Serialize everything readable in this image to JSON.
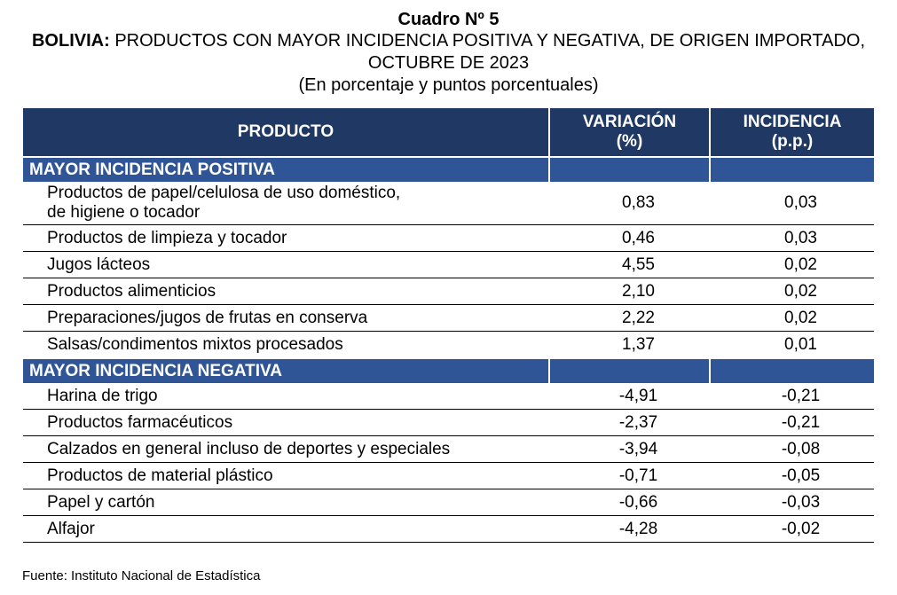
{
  "header": {
    "cuadro": "Cuadro Nº 5",
    "country": "BOLIVIA:",
    "title_rest": " PRODUCTOS CON MAYOR INCIDENCIA POSITIVA Y NEGATIVA, DE ORIGEN IMPORTADO, OCTUBRE DE 2023",
    "subtitle": "(En porcentaje y puntos porcentuales)"
  },
  "table": {
    "columns": {
      "product": "PRODUCTO",
      "variation": "VARIACIÓN",
      "variation_unit": "(%)",
      "incidence": "INCIDENCIA",
      "incidence_unit": "(p.p.)"
    },
    "positive": {
      "label": "MAYOR INCIDENCIA POSITIVA",
      "rows": [
        {
          "product_line1": "Productos de papel/celulosa de uso doméstico,",
          "product_line2": "de higiene o tocador",
          "variation": "0,83",
          "incidence": "0,03"
        },
        {
          "product": "Productos de limpieza y tocador",
          "variation": "0,46",
          "incidence": "0,03"
        },
        {
          "product": "Jugos lácteos",
          "variation": "4,55",
          "incidence": "0,02"
        },
        {
          "product": "Productos alimenticios",
          "variation": "2,10",
          "incidence": "0,02"
        },
        {
          "product": "Preparaciones/jugos de frutas en conserva",
          "variation": "2,22",
          "incidence": "0,02"
        },
        {
          "product": "Salsas/condimentos mixtos procesados",
          "variation": "1,37",
          "incidence": "0,01"
        }
      ]
    },
    "negative": {
      "label": "MAYOR INCIDENCIA NEGATIVA",
      "rows": [
        {
          "product": "Harina de trigo",
          "variation": "-4,91",
          "incidence": "-0,21"
        },
        {
          "product": "Productos farmacéuticos",
          "variation": "-2,37",
          "incidence": "-0,21"
        },
        {
          "product": "Calzados en general incluso de deportes y especiales",
          "variation": "-3,94",
          "incidence": "-0,08"
        },
        {
          "product": "Productos de material plástico",
          "variation": "-0,71",
          "incidence": "-0,05"
        },
        {
          "product": "Papel y cartón",
          "variation": "-0,66",
          "incidence": "-0,03"
        },
        {
          "product": "Alfajor",
          "variation": "-4,28",
          "incidence": "-0,02"
        }
      ]
    }
  },
  "source": "Fuente: Instituto Nacional de Estadística",
  "colors": {
    "header_bg": "#1f3864",
    "section_bg": "#2f5597"
  }
}
